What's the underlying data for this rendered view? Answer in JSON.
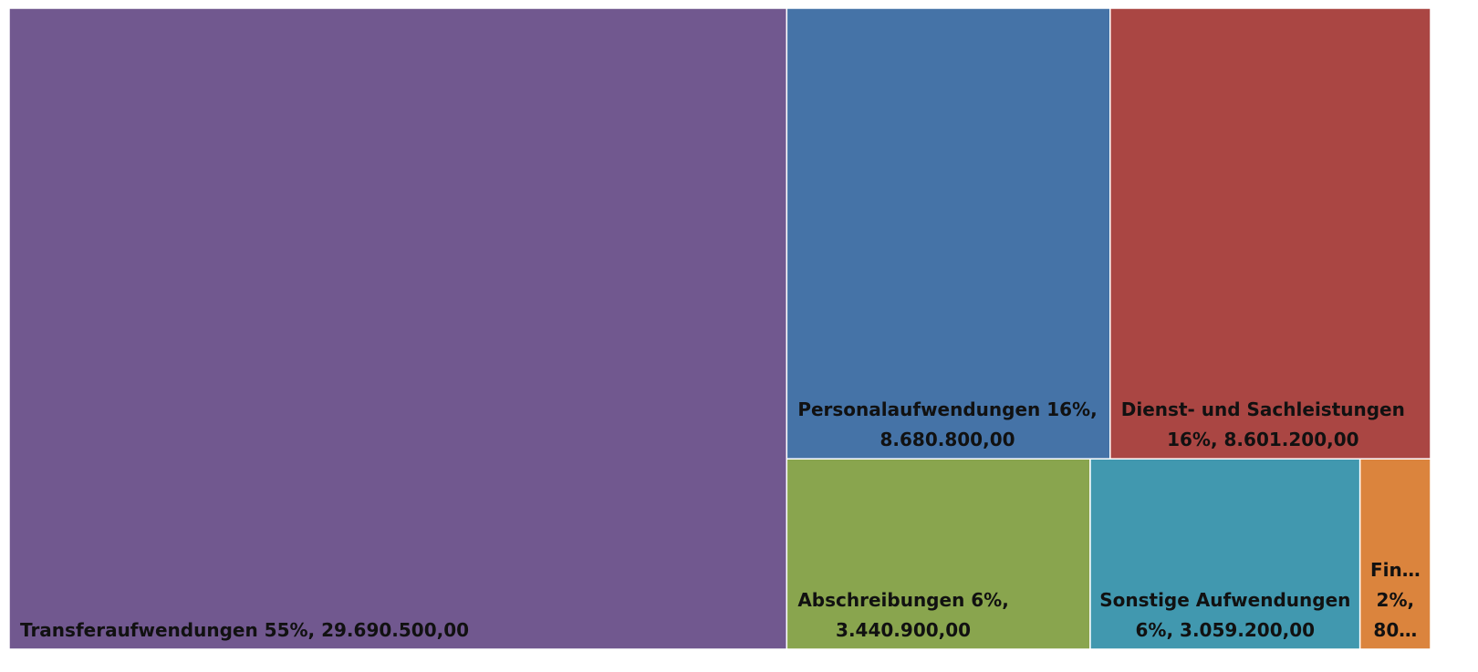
{
  "chart_data": {
    "type": "treemap",
    "categories": [
      "Transferaufwendungen",
      "Personalaufwendungen",
      "Dienst- und Sachleistungen",
      "Abschreibungen",
      "Sonstige Aufwendungen",
      "Fin…"
    ],
    "labels": [
      [
        "Transferaufwendungen 55%,  29.690.500,00"
      ],
      [
        "Personalaufwendungen 16%,",
        "8.680.800,00"
      ],
      [
        "Dienst- und Sachleistungen",
        "16%,  8.601.200,00"
      ],
      [
        "Abschreibungen 6%,",
        "3.440.900,00"
      ],
      [
        "Sonstige Aufwendungen",
        "6%,  3.059.200,00"
      ],
      [
        "Fin…",
        "2%,",
        "80…"
      ]
    ],
    "values": [
      29690500,
      8680800,
      8601200,
      3440900,
      3059200,
      800000
    ],
    "colors": [
      "#71588f",
      "#4573a7",
      "#aa4643",
      "#89a54e",
      "#4198af",
      "#db843d"
    ]
  }
}
